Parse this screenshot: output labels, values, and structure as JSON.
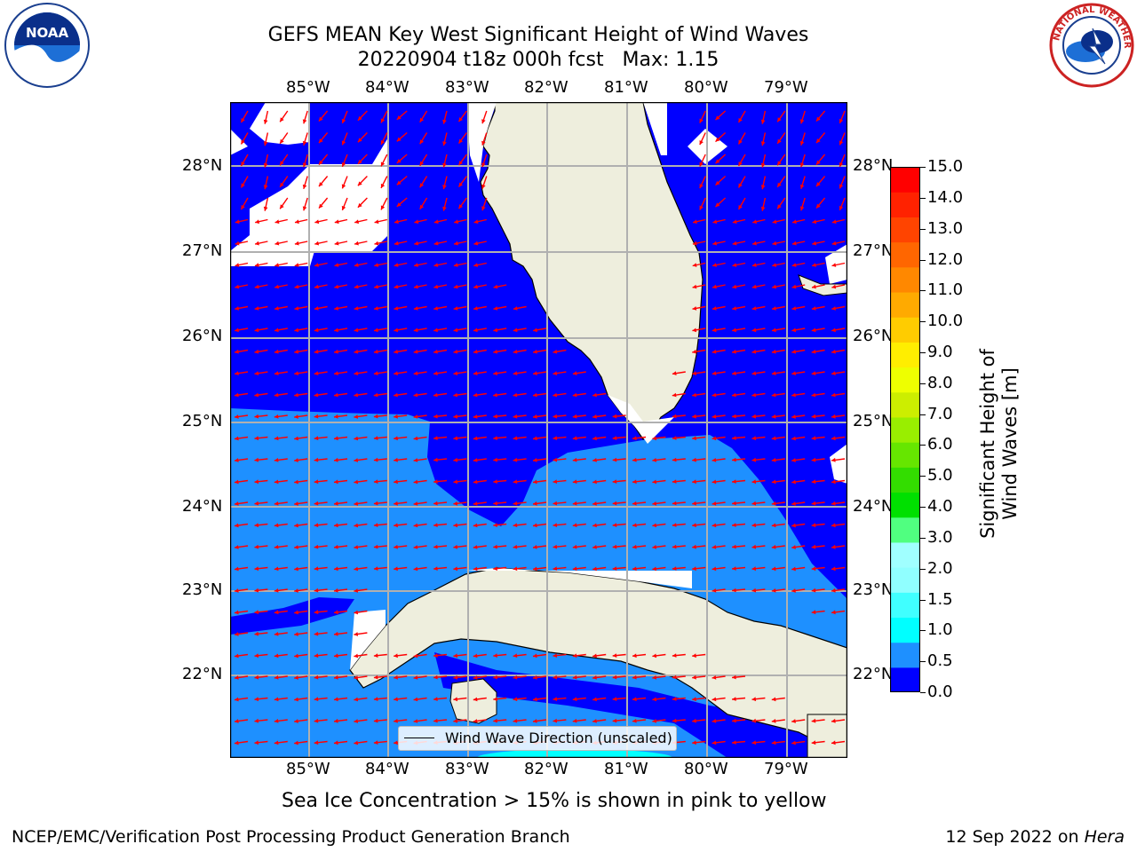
{
  "header": {
    "title_line1": "GEFS MEAN Key West Significant Height of Wind Waves",
    "title_line2": "20220904 t18z 000h fcst   Max: 1.15"
  },
  "logos": {
    "left_name": "noaa-logo",
    "left_text": "NOAA",
    "right_name": "nws-logo",
    "right_text": "NATIONAL WEATHER SERVICE"
  },
  "map": {
    "lon_ticks": [
      "85°W",
      "84°W",
      "83°W",
      "82°W",
      "81°W",
      "80°W",
      "79°W"
    ],
    "lat_ticks": [
      "28°N",
      "27°N",
      "26°N",
      "25°N",
      "24°N",
      "23°N",
      "22°N"
    ],
    "legend_label": "Wind Wave Direction (unscaled)",
    "colors": {
      "land": "#eeeedd",
      "band_0_0_5": "#0000ff",
      "band_0_5_1_0": "#1e90ff",
      "band_1_0_1_5": "#00ffff",
      "arrows": "#ff0000",
      "grid": "#b0b0b0"
    }
  },
  "colorbar": {
    "label": "Significant Height of Wind Waves [m]",
    "ticks": [
      "15.0",
      "14.0",
      "13.0",
      "12.0",
      "11.0",
      "10.0",
      "9.0",
      "8.0",
      "7.0",
      "6.0",
      "5.0",
      "4.0",
      "3.0",
      "2.0",
      "1.5",
      "1.0",
      "0.5",
      "0.0"
    ],
    "colors": [
      "#0000ff",
      "#1e90ff",
      "#00ffff",
      "#40ffff",
      "#90ffff",
      "#a0ffff",
      "#50ff80",
      "#00e000",
      "#33dd00",
      "#66e600",
      "#99ee00",
      "#ccee00",
      "#eeff00",
      "#ffee00",
      "#ffcc00",
      "#ffaa00",
      "#ff8800",
      "#ff6600",
      "#ff4400",
      "#ff2200",
      "#ff0000"
    ]
  },
  "caption": "Sea Ice Concentration > 15% is shown in pink to yellow",
  "footer": {
    "left": "NCEP/EMC/Verification Post Processing Product Generation Branch",
    "right_prefix": "12 Sep 2022 on ",
    "right_italic": "Hera"
  }
}
